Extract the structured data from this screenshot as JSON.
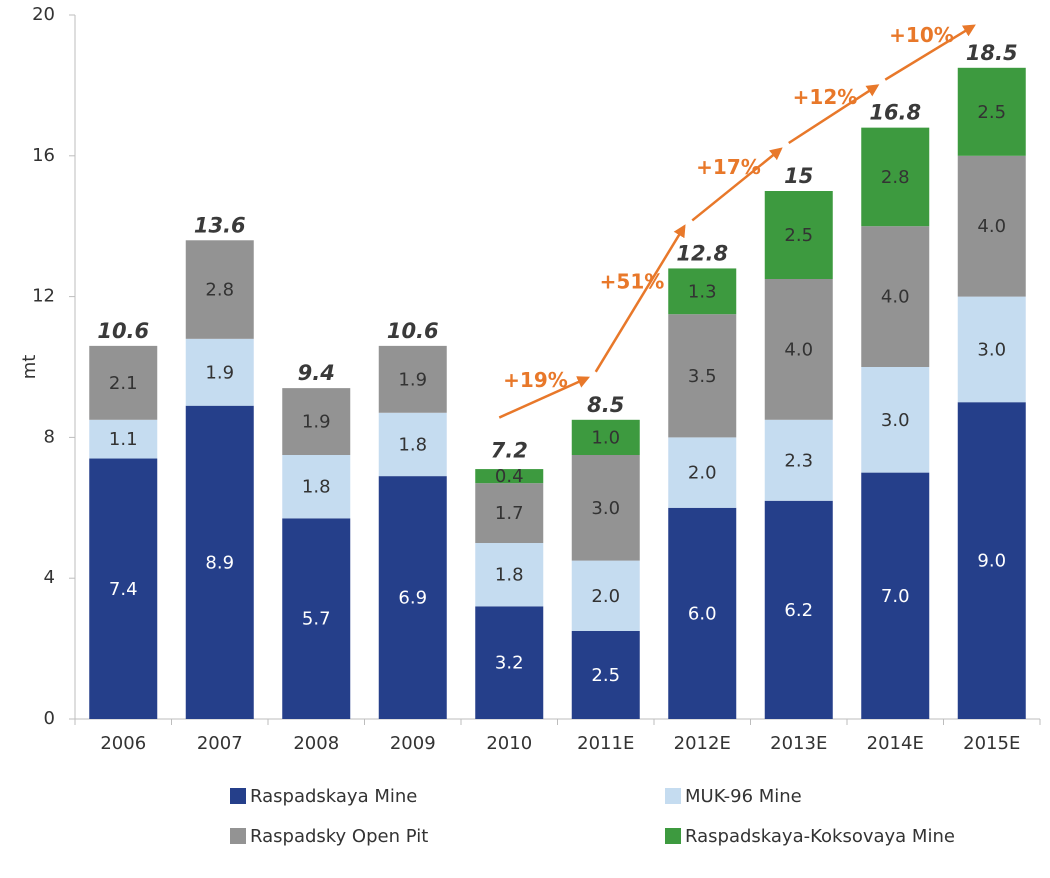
{
  "chart_data": {
    "type": "stacked_bar",
    "y_label": "mt",
    "categories": [
      "2006",
      "2007",
      "2008",
      "2009",
      "2010",
      "2011E",
      "2012E",
      "2013E",
      "2014E",
      "2015E"
    ],
    "series": [
      {
        "name": "Raspadskaya Mine",
        "color": "#253f8a",
        "values": [
          7.4,
          8.9,
          5.7,
          6.9,
          3.2,
          2.5,
          6.0,
          6.2,
          7.0,
          9.0
        ],
        "value_labels": [
          "7.4",
          "8.9",
          "5.7",
          "6.9",
          "3.2",
          "2.5",
          "6.0",
          "6.2",
          "7.0",
          "9.0"
        ]
      },
      {
        "name": "MUK-96 Mine",
        "color": "#c5dcf0",
        "values": [
          1.1,
          1.9,
          1.8,
          1.8,
          1.8,
          2.0,
          2.0,
          2.3,
          3.0,
          3.0
        ],
        "value_labels": [
          "1.1",
          "1.9",
          "1.8",
          "1.8",
          "1.8",
          "2.0",
          "2.0",
          "2.3",
          "3.0",
          "3.0"
        ]
      },
      {
        "name": "Raspadsky Open Pit",
        "color": "#939393",
        "values": [
          2.1,
          2.8,
          1.9,
          1.9,
          1.7,
          3.0,
          3.5,
          4.0,
          4.0,
          4.0
        ],
        "value_labels": [
          "2.1",
          "2.8",
          "1.9",
          "1.9",
          "1.7",
          "3.0",
          "3.5",
          "4.0",
          "4.0",
          "4.0"
        ]
      },
      {
        "name": "Raspadskaya-Koksovaya Mine",
        "color": "#3d9a3f",
        "values": [
          null,
          null,
          null,
          null,
          0.4,
          1.0,
          1.3,
          2.5,
          2.8,
          2.5
        ],
        "value_labels": [
          null,
          null,
          null,
          null,
          "0.4",
          "1.0",
          "1.3",
          "2.5",
          "2.8",
          "2.5"
        ]
      }
    ],
    "totals": [
      10.6,
      13.6,
      9.4,
      10.6,
      7.2,
      8.5,
      12.8,
      15.0,
      16.8,
      18.5
    ],
    "total_labels": [
      "10.6",
      "13.6",
      "9.4",
      "10.6",
      "7.2",
      "8.5",
      "12.8",
      "15.0",
      "16.8",
      "18.5"
    ],
    "growth_labels": [
      "+19%",
      "+51%",
      "+17%",
      "+12%",
      "+10%"
    ],
    "ylim": [
      0,
      20
    ],
    "yticks": [
      0,
      4,
      8,
      12,
      16,
      20
    ],
    "grid": false,
    "legend": "bottom"
  }
}
